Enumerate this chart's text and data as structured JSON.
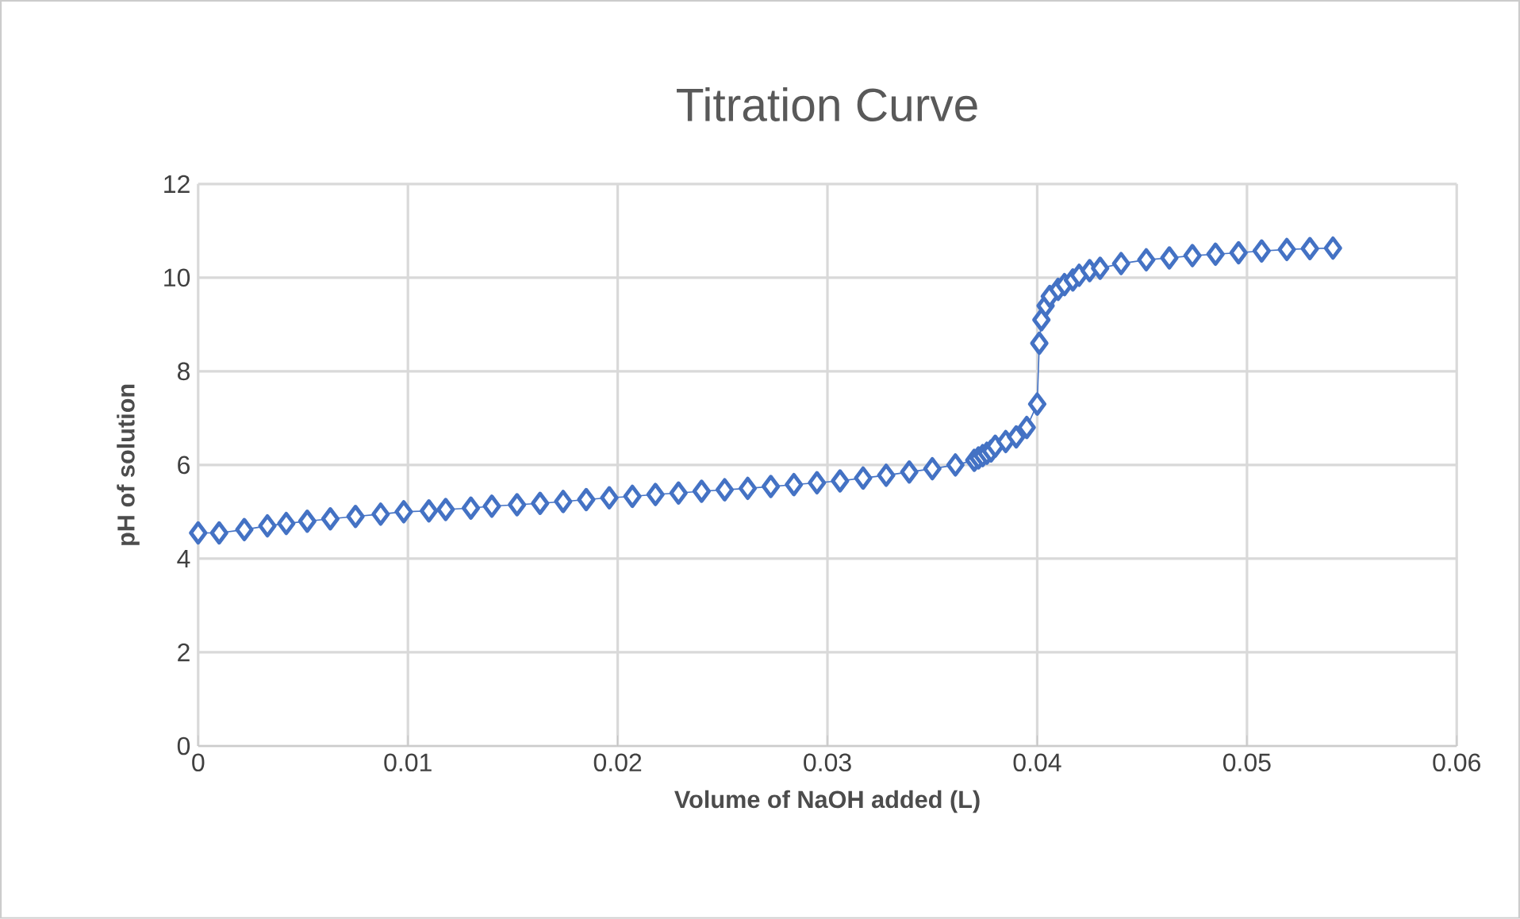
{
  "chart_data": {
    "type": "line",
    "title": "Titration Curve",
    "xlabel": "Volume of NaOH  added (L)",
    "ylabel": "pH of solution",
    "xlim": [
      0,
      0.06
    ],
    "xticks": [
      0,
      0.01,
      0.02,
      0.03,
      0.04,
      0.05,
      0.06
    ],
    "ylim": [
      0,
      12
    ],
    "yticks": [
      0,
      2,
      4,
      6,
      8,
      10,
      12
    ],
    "grid": true,
    "marker": "diamond",
    "line_style": "solid",
    "series": [
      {
        "color": "#4472c4",
        "x": [
          0,
          0.001,
          0.0022,
          0.0033,
          0.0042,
          0.0052,
          0.0063,
          0.0075,
          0.0087,
          0.0098,
          0.011,
          0.0118,
          0.013,
          0.014,
          0.0152,
          0.0163,
          0.0174,
          0.0185,
          0.0196,
          0.0207,
          0.0218,
          0.0229,
          0.024,
          0.0251,
          0.0262,
          0.0273,
          0.0284,
          0.0295,
          0.0306,
          0.0317,
          0.0328,
          0.0339,
          0.035,
          0.0361,
          0.037,
          0.0372,
          0.0374,
          0.0376,
          0.0378,
          0.038,
          0.0385,
          0.039,
          0.0395,
          0.04,
          0.0401,
          0.0402,
          0.0404,
          0.0406,
          0.041,
          0.0413,
          0.0417,
          0.042,
          0.0425,
          0.043,
          0.044,
          0.0452,
          0.0463,
          0.0474,
          0.0485,
          0.0496,
          0.0507,
          0.0519,
          0.053,
          0.0541
        ],
        "values": [
          4.55,
          4.55,
          4.62,
          4.7,
          4.75,
          4.8,
          4.85,
          4.9,
          4.95,
          5.0,
          5.02,
          5.05,
          5.08,
          5.12,
          5.15,
          5.18,
          5.22,
          5.26,
          5.3,
          5.33,
          5.37,
          5.4,
          5.44,
          5.47,
          5.5,
          5.54,
          5.58,
          5.62,
          5.66,
          5.72,
          5.78,
          5.85,
          5.92,
          6.0,
          6.1,
          6.15,
          6.2,
          6.25,
          6.3,
          6.4,
          6.5,
          6.6,
          6.8,
          7.3,
          8.6,
          9.1,
          9.4,
          9.6,
          9.75,
          9.85,
          9.95,
          10.05,
          10.15,
          10.2,
          10.3,
          10.38,
          10.42,
          10.47,
          10.5,
          10.53,
          10.57,
          10.6,
          10.62,
          10.63
        ]
      }
    ]
  }
}
